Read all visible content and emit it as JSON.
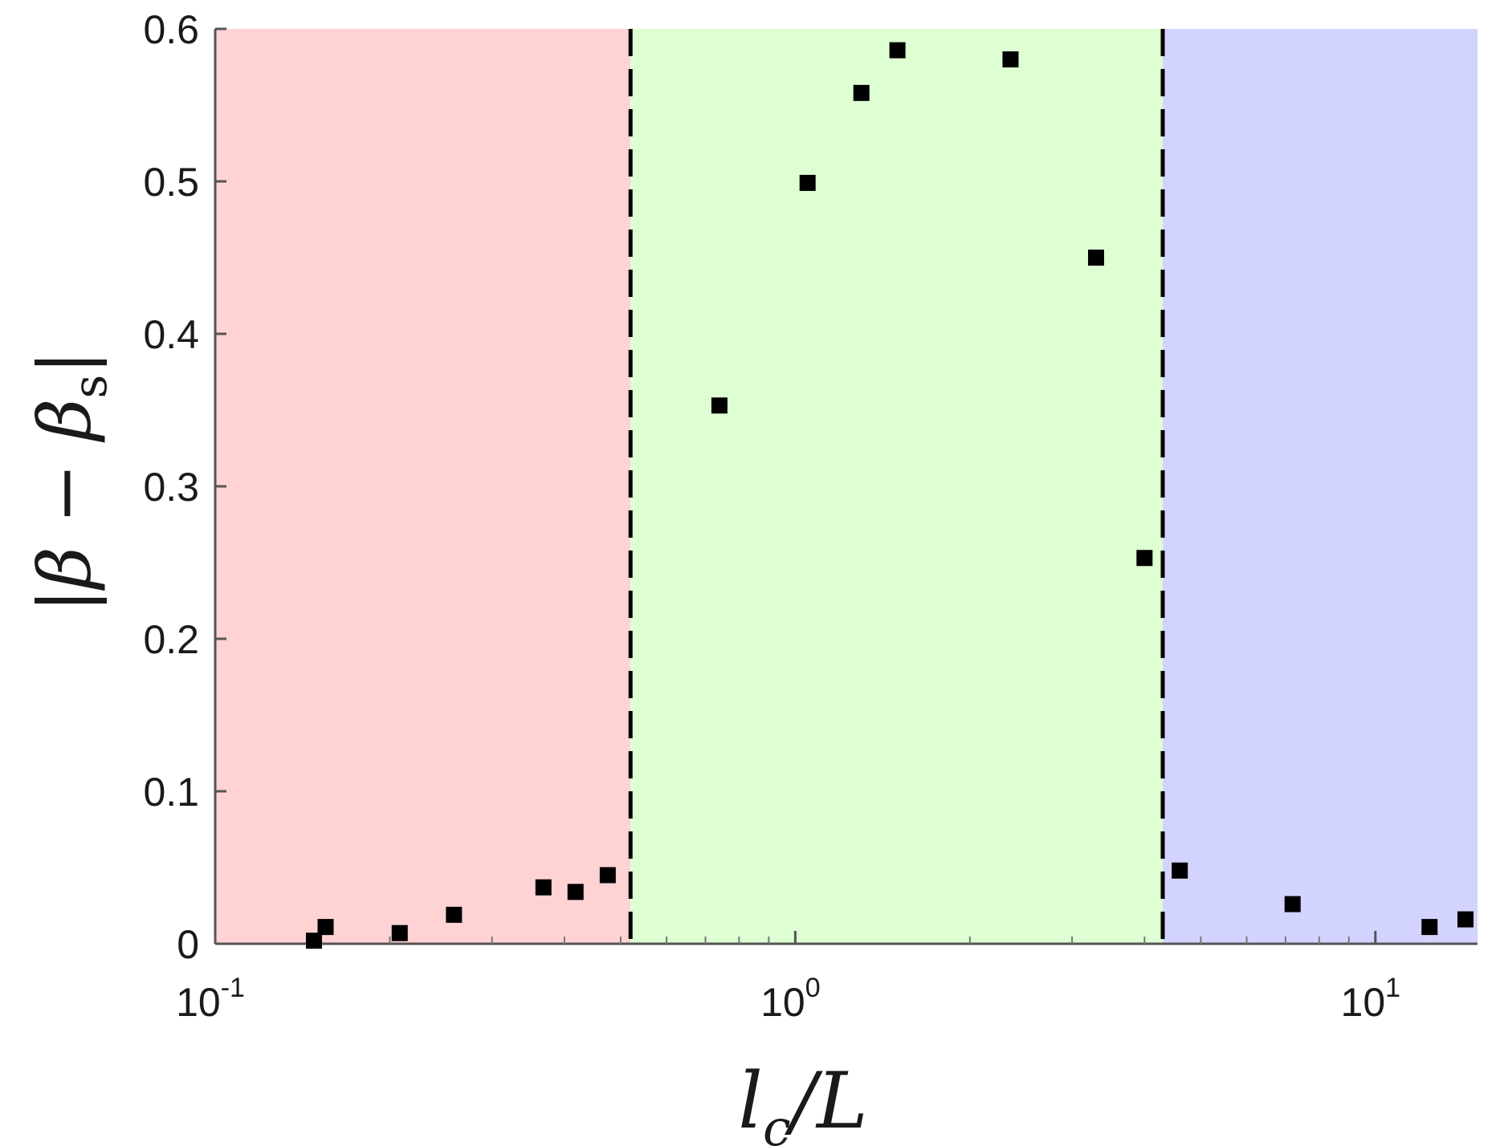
{
  "chart_data": {
    "type": "scatter",
    "xlabel": "l_c/L",
    "ylabel": "|β − β_s|",
    "x_scale": "log",
    "xlim": [
      0.1,
      15
    ],
    "ylim": [
      0,
      0.6
    ],
    "y_ticks": [
      "0",
      "0.1",
      "0.2",
      "0.3",
      "0.4",
      "0.5",
      "0.6"
    ],
    "x_ticks": [
      {
        "value": 0.1,
        "base": "10",
        "exp": "-1"
      },
      {
        "value": 1,
        "base": "10",
        "exp": "0"
      },
      {
        "value": 10,
        "base": "10",
        "exp": "1"
      }
    ],
    "regions": [
      {
        "x_from": 0.1,
        "x_to": 0.52,
        "color": "#ffd3d3"
      },
      {
        "x_from": 0.52,
        "x_to": 4.3,
        "color": "#deffd3"
      },
      {
        "x_from": 4.3,
        "x_to": 15,
        "color": "#d3d3ff"
      }
    ],
    "boundaries": [
      0.52,
      4.3
    ],
    "series": [
      {
        "marker": "square",
        "color": "#000000",
        "points": [
          {
            "x": 0.148,
            "y": 0.002
          },
          {
            "x": 0.155,
            "y": 0.011
          },
          {
            "x": 0.208,
            "y": 0.007
          },
          {
            "x": 0.258,
            "y": 0.019
          },
          {
            "x": 0.368,
            "y": 0.037
          },
          {
            "x": 0.418,
            "y": 0.034
          },
          {
            "x": 0.475,
            "y": 0.045
          },
          {
            "x": 0.74,
            "y": 0.353
          },
          {
            "x": 1.05,
            "y": 0.499
          },
          {
            "x": 1.3,
            "y": 0.558
          },
          {
            "x": 1.5,
            "y": 0.586
          },
          {
            "x": 2.35,
            "y": 0.58
          },
          {
            "x": 3.3,
            "y": 0.45
          },
          {
            "x": 4.0,
            "y": 0.253
          },
          {
            "x": 4.6,
            "y": 0.048
          },
          {
            "x": 7.2,
            "y": 0.026
          },
          {
            "x": 12.4,
            "y": 0.011
          },
          {
            "x": 14.3,
            "y": 0.016
          }
        ]
      }
    ]
  }
}
